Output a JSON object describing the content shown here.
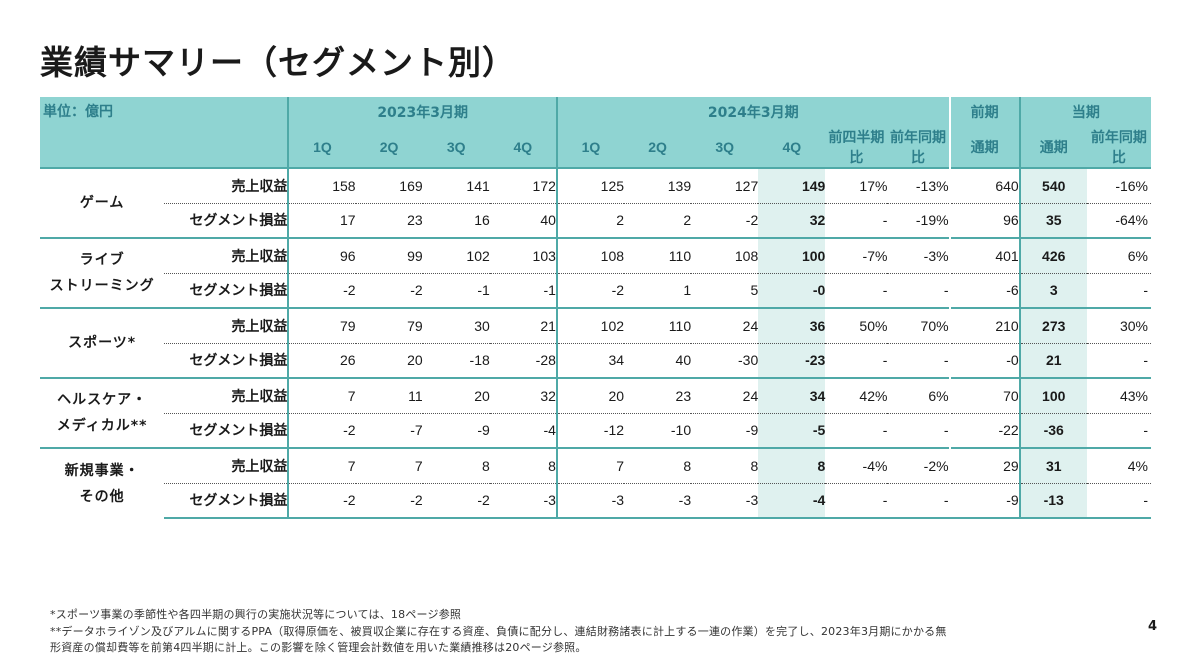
{
  "title": "業績サマリー（セグメント別）",
  "header": {
    "unit": "単位：億円",
    "fy2023": "2023年3月期",
    "fy2024": "2024年3月期",
    "prev_label": "前期",
    "cur_label": "当期",
    "q1": "1Q",
    "q2": "2Q",
    "q3": "3Q",
    "q4": "4Q",
    "qoq": "前四半期比",
    "yoy": "前年同期比",
    "full_year": "通期"
  },
  "segments": [
    {
      "name_lines": [
        "ゲーム"
      ],
      "rows": [
        {
          "metric": "売上収益",
          "fy23": [
            "158",
            "169",
            "141",
            "172"
          ],
          "fy24": [
            "125",
            "139",
            "127",
            "149"
          ],
          "qoq": "17%",
          "yoy": "-13%",
          "prev": "640",
          "cur": "540",
          "cur_yoy": "-16%"
        },
        {
          "metric": "セグメント損益",
          "fy23": [
            "17",
            "23",
            "16",
            "40"
          ],
          "fy24": [
            "2",
            "2",
            "-2",
            "32"
          ],
          "qoq": "-",
          "yoy": "-19%",
          "prev": "96",
          "cur": "35",
          "cur_yoy": "-64%"
        }
      ]
    },
    {
      "name_lines": [
        "ライブ",
        "ストリーミング"
      ],
      "rows": [
        {
          "metric": "売上収益",
          "fy23": [
            "96",
            "99",
            "102",
            "103"
          ],
          "fy24": [
            "108",
            "110",
            "108",
            "100"
          ],
          "qoq": "-7%",
          "yoy": "-3%",
          "prev": "401",
          "cur": "426",
          "cur_yoy": "6%"
        },
        {
          "metric": "セグメント損益",
          "fy23": [
            "-2",
            "-2",
            "-1",
            "-1"
          ],
          "fy24": [
            "-2",
            "1",
            "5",
            "-0"
          ],
          "qoq": "-",
          "yoy": "-",
          "prev": "-6",
          "cur": "3",
          "cur_yoy": "-"
        }
      ]
    },
    {
      "name_lines": [
        "スポーツ*"
      ],
      "rows": [
        {
          "metric": "売上収益",
          "fy23": [
            "79",
            "79",
            "30",
            "21"
          ],
          "fy24": [
            "102",
            "110",
            "24",
            "36"
          ],
          "qoq": "50%",
          "yoy": "70%",
          "prev": "210",
          "cur": "273",
          "cur_yoy": "30%"
        },
        {
          "metric": "セグメント損益",
          "fy23": [
            "26",
            "20",
            "-18",
            "-28"
          ],
          "fy24": [
            "34",
            "40",
            "-30",
            "-23"
          ],
          "qoq": "-",
          "yoy": "-",
          "prev": "-0",
          "cur": "21",
          "cur_yoy": "-"
        }
      ]
    },
    {
      "name_lines": [
        "ヘルスケア・",
        "メディカル**"
      ],
      "rows": [
        {
          "metric": "売上収益",
          "fy23": [
            "7",
            "11",
            "20",
            "32"
          ],
          "fy24": [
            "20",
            "23",
            "24",
            "34"
          ],
          "qoq": "42%",
          "yoy": "6%",
          "prev": "70",
          "cur": "100",
          "cur_yoy": "43%"
        },
        {
          "metric": "セグメント損益",
          "fy23": [
            "-2",
            "-7",
            "-9",
            "-4"
          ],
          "fy24": [
            "-12",
            "-10",
            "-9",
            "-5"
          ],
          "qoq": "-",
          "yoy": "-",
          "prev": "-22",
          "cur": "-36",
          "cur_yoy": "-"
        }
      ]
    },
    {
      "name_lines": [
        "新規事業・",
        "その他"
      ],
      "rows": [
        {
          "metric": "売上収益",
          "fy23": [
            "7",
            "7",
            "8",
            "8"
          ],
          "fy24": [
            "7",
            "8",
            "8",
            "8"
          ],
          "qoq": "-4%",
          "yoy": "-2%",
          "prev": "29",
          "cur": "31",
          "cur_yoy": "4%"
        },
        {
          "metric": "セグメント損益",
          "fy23": [
            "-2",
            "-2",
            "-2",
            "-3"
          ],
          "fy24": [
            "-3",
            "-3",
            "-3",
            "-4"
          ],
          "qoq": "-",
          "yoy": "-",
          "prev": "-9",
          "cur": "-13",
          "cur_yoy": "-"
        }
      ]
    }
  ],
  "footnotes": [
    "*スポーツ事業の季節性や各四半期の興行の実施状況等については、18ページ参照",
    "**データホライゾン及びアルムに関するPPA（取得原価を、被買収企業に存在する資産、負債に配分し、連結財務諸表に計上する一連の作業）を完了し、2023年3月期にかかる無",
    "形資産の償却費等を前第4四半期に計上。この影響を除く管理会計数値を用いた業績推移は20ページ参照。"
  ],
  "page_number": "4"
}
